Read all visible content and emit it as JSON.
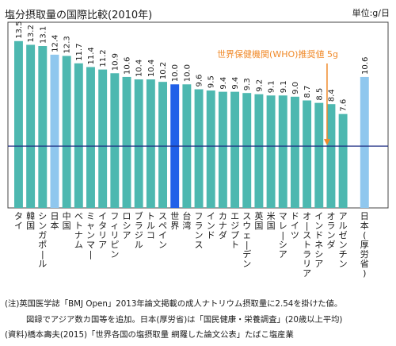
{
  "title": "塩分摂取量の国際比較(2010年)",
  "unit": "単位:g/日",
  "colors": {
    "default": "#4db8b0",
    "japan": "#8fc7ee",
    "world": "#2060e8",
    "reference_line": "#1a2a80",
    "annotation": "#f08a2a",
    "frame": "#444444"
  },
  "chart_data": {
    "type": "bar",
    "ylim": [
      0,
      14
    ],
    "grid": false,
    "categories": [
      "タイ",
      "韓国",
      "シンガポール",
      "日本",
      "中国",
      "ベトナム",
      "ミャンマー",
      "イタリア",
      "フィリピン",
      "ロシア",
      "ブラジル",
      "トルコ",
      "スペイン",
      "世界",
      "台湾",
      "フランス",
      "インド",
      "カナダ",
      "エジプト",
      "スウェーデン",
      "英国",
      "米国",
      "マレーシア",
      "ドイツ",
      "オーストラリア",
      "インドネシア",
      "オランダ",
      "アルゼンチン",
      "日本(厚労省)"
    ],
    "values": [
      13.5,
      13.2,
      13.1,
      12.4,
      12.3,
      11.7,
      11.4,
      11.2,
      10.9,
      10.6,
      10.4,
      10.4,
      10.2,
      10.0,
      10.0,
      9.6,
      9.5,
      9.4,
      9.4,
      9.3,
      9.2,
      9.1,
      9.1,
      9.0,
      8.7,
      8.5,
      8.4,
      7.6,
      10.6
    ],
    "value_labels": [
      "13.5",
      "13.2",
      "13.1",
      "12.4",
      "12.3",
      "11.7",
      "11.4",
      "11.2",
      "10.9",
      "10.6",
      "10.4",
      "10.4",
      "10.2",
      "10.0",
      "10.0",
      "9.6",
      "9.5",
      "9.4",
      "9.4",
      "9.3",
      "9.2",
      "9.1",
      "9.1",
      "9.0",
      "8.7",
      "8.5",
      "8.4",
      "7.6",
      "10.6"
    ],
    "highlight": {
      "japan": [
        3,
        28
      ],
      "world": [
        13
      ]
    },
    "reference_line": {
      "value": 5,
      "label": "世界保健機関(WHO)推奨値 5g",
      "arrow_category": "オランダ"
    }
  },
  "notes": [
    "(注)英国医学誌「BMJ Open」2013年論文掲載の成人ナトリウム摂取量に2.54を掛けた値。",
    "図録でアジア数カ国等を追加。日本(厚労省)は「国民健康・栄養調査」(20歳以上平均)",
    "(資料)橋本壽夫(2015)「世界各国の塩摂取量 網羅した論文公表」たばこ塩産業"
  ]
}
